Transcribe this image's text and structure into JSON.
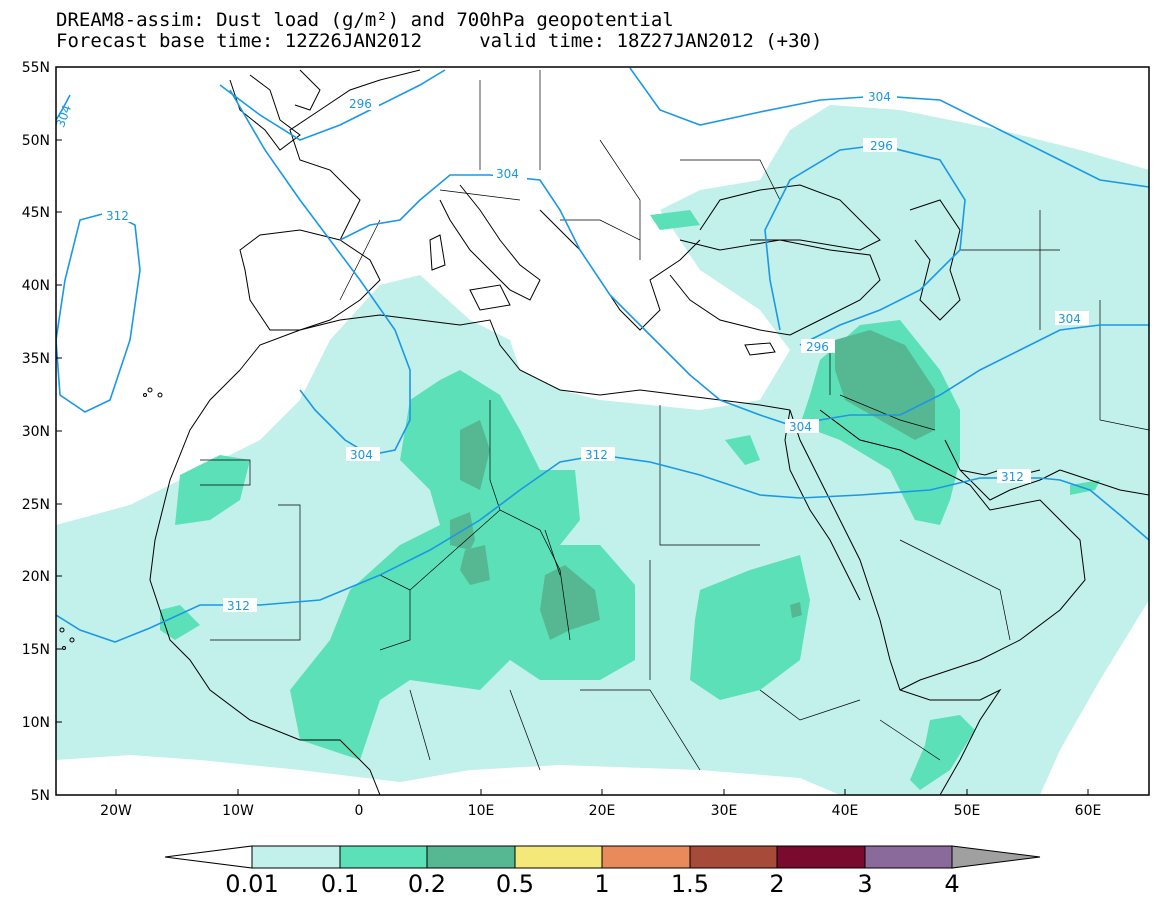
{
  "header": {
    "title_line1": "DREAM8-assim: Dust load (g/m²) and 700hPa geopotential",
    "title_line2": "Forecast base time: 12Z26JAN2012     valid time: 18Z27JAN2012 (+30)"
  },
  "axes": {
    "lat_labels": [
      "55N",
      "50N",
      "45N",
      "40N",
      "35N",
      "30N",
      "25N",
      "20N",
      "15N",
      "10N",
      "5N"
    ],
    "lon_labels": [
      "20W",
      "10W",
      "0",
      "10E",
      "20E",
      "30E",
      "40E",
      "50E",
      "60E"
    ]
  },
  "colorbar": {
    "labels": [
      "0.01",
      "0.1",
      "0.2",
      "0.5",
      "1",
      "1.5",
      "2",
      "3",
      "4"
    ],
    "colors": [
      "#c2f0ea",
      "#5ce0b8",
      "#55b893",
      "#f4e87a",
      "#e88a5c",
      "#a84a3a",
      "#7a0a2e",
      "#8a6a9a",
      "#a0a0a0"
    ]
  },
  "contours": {
    "labels": [
      "304",
      "296",
      "304",
      "296",
      "304",
      "312",
      "304",
      "296",
      "304",
      "312",
      "312",
      "312"
    ]
  },
  "colors": {
    "contour": "#1a98e6",
    "dust_light": "#c2f0ea",
    "dust_mid": "#5ce0b8",
    "dust_dark": "#55b893"
  }
}
